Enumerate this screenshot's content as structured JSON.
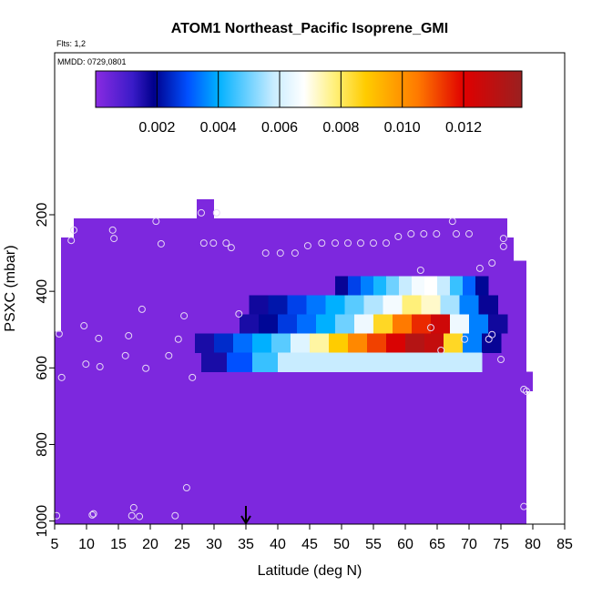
{
  "chart_data": {
    "type": "curtain",
    "title": "ATOM1 Northeast_Pacific Isoprene_GMI",
    "flights": "Flts: 1,2",
    "dates": "MMDD: 0729,0801",
    "x_label": "Latitude (deg N)",
    "y_label": "PSXC (mbar)",
    "xlim": [
      5,
      85
    ],
    "xticks": [
      5,
      10,
      15,
      20,
      25,
      30,
      35,
      40,
      45,
      50,
      55,
      60,
      65,
      70,
      75,
      80,
      85
    ],
    "ylim": [
      1008,
      -223
    ],
    "yticks": [
      200,
      400,
      600,
      800,
      1000
    ],
    "zlim": [
      0,
      0.0139
    ],
    "zticks": [
      0.002,
      0.004,
      0.006,
      {
        "value": 0.008,
        "label": "0.008"
      },
      {
        "value": 0.01,
        "label": "0.010"
      },
      0.012
    ],
    "colormap": [
      {
        "value": 0,
        "color": "#8a2be2"
      },
      {
        "value": 0.0012,
        "color": "#3a1bc8"
      },
      {
        "value": 0.0019,
        "color": "#00008c"
      },
      {
        "value": 0.003,
        "color": "#0050ff"
      },
      {
        "value": 0.004,
        "color": "#00b0ff"
      },
      {
        "value": 0.0058,
        "color": "#c8ecff"
      },
      {
        "value": 0.0068,
        "color": "#ffffff"
      },
      {
        "value": 0.0078,
        "color": "#fff07a"
      },
      {
        "value": 0.0088,
        "color": "#ffcc00"
      },
      {
        "value": 0.0105,
        "color": "#ff7a00"
      },
      {
        "value": 0.012,
        "color": "#e00000"
      },
      {
        "value": 0.0139,
        "color": "#9a2020"
      }
    ],
    "regions": [
      {
        "lat": [
          5,
          79
        ],
        "p": [
          610,
          1008
        ],
        "value": 0.0002
      },
      {
        "lat": [
          5,
          6
        ],
        "p": [
          505,
          610
        ],
        "value": 0.0002
      },
      {
        "lat": [
          6,
          8
        ],
        "p": [
          260,
          610
        ],
        "value": 0.0002
      },
      {
        "lat": [
          8,
          76
        ],
        "p": [
          210,
          610
        ],
        "value": 0.0002
      },
      {
        "lat": [
          27.3,
          30
        ],
        "p": [
          160,
          210
        ],
        "value": 0.0002
      },
      {
        "lat": [
          76,
          77
        ],
        "p": [
          260,
          610
        ],
        "value": 0.0002
      },
      {
        "lat": [
          77,
          79
        ],
        "p": [
          320,
          610
        ],
        "value": 0.0002
      },
      {
        "lat": [
          79,
          80
        ],
        "p": [
          610,
          660
        ],
        "value": 0.0002
      }
    ],
    "bands": [
      {
        "p": [
          360,
          410
        ],
        "lat": [
          49,
          73
        ],
        "values": [
          0.0018,
          0.0028,
          0.0035,
          0.0042,
          0.005,
          0.0058,
          0.0066,
          0.0068,
          0.0058,
          0.0045,
          0.0032,
          0.002
        ]
      },
      {
        "p": [
          410,
          460
        ],
        "lat": [
          35.5,
          74.5
        ],
        "values": [
          0.0017,
          0.0022,
          0.0028,
          0.0034,
          0.004,
          0.0048,
          0.0056,
          0.0066,
          0.0078,
          0.0072,
          0.0055,
          0.0035,
          0.0018
        ]
      },
      {
        "p": [
          460,
          510
        ],
        "lat": [
          34,
          76
        ],
        "values": [
          0.0016,
          0.002,
          0.0027,
          0.0033,
          0.004,
          0.005,
          0.0065,
          0.0085,
          0.0105,
          0.0115,
          0.0125,
          0.0065,
          0.0035,
          0.0017
        ]
      },
      {
        "p": [
          510,
          560
        ],
        "lat": [
          27,
          75
        ],
        "values": [
          0.0016,
          0.0025,
          0.0033,
          0.004,
          0.0048,
          0.0062,
          0.0075,
          0.0088,
          0.0102,
          0.0112,
          0.0122,
          0.0132,
          0.0128,
          0.0085,
          0.0035,
          0.0018
        ]
      },
      {
        "p": [
          560,
          610
        ],
        "lat": [
          28,
          72
        ],
        "values": [
          0.0016,
          0.003,
          0.0045,
          0.0058,
          0.0058,
          0.0058,
          0.0058,
          0.0058,
          0.0058,
          0.0058,
          0.0058
        ]
      }
    ],
    "points": {
      "color": "#e6d8f5",
      "x": [
        5.3,
        5.7,
        6.1,
        7.6,
        8.0,
        9.6,
        9.9,
        11.9,
        12.1,
        14.1,
        14.3,
        16.6,
        16.1,
        18.7,
        19.3,
        20.9,
        21.7,
        22.9,
        24.4,
        25.3,
        28.0,
        30.4,
        25.7,
        26.6,
        28.4,
        29.9,
        31.9,
        32.7,
        33.9,
        38.1,
        40.4,
        42.7,
        44.7,
        46.9,
        49.0,
        51.0,
        53.0,
        55.0,
        57.0,
        58.9,
        60.9,
        62.9,
        64.9,
        67.4,
        68.0,
        70.0,
        62.4,
        71.7,
        73.6,
        75.4,
        75.4,
        65.6,
        64.0,
        69.3,
        73.6,
        73.1,
        75.0,
        78.6,
        79.0,
        10.9,
        11.1,
        17.4,
        17.1,
        18.3,
        23.9,
        78.6
      ],
      "y": [
        986,
        511,
        625,
        267,
        240,
        490,
        590,
        523,
        597,
        240,
        262,
        516,
        568,
        447,
        601,
        217,
        276,
        568,
        525,
        464,
        195,
        195,
        913,
        625,
        274,
        274,
        274,
        286,
        459,
        300,
        300,
        300,
        281,
        274,
        274,
        274,
        274,
        274,
        274,
        257,
        250,
        250,
        250,
        217,
        250,
        250,
        345,
        340,
        326,
        262,
        283,
        554,
        495,
        525,
        513,
        525,
        578,
        656,
        661,
        984,
        981,
        965,
        986,
        988,
        986,
        962
      ]
    },
    "marker_lat": 35
  }
}
